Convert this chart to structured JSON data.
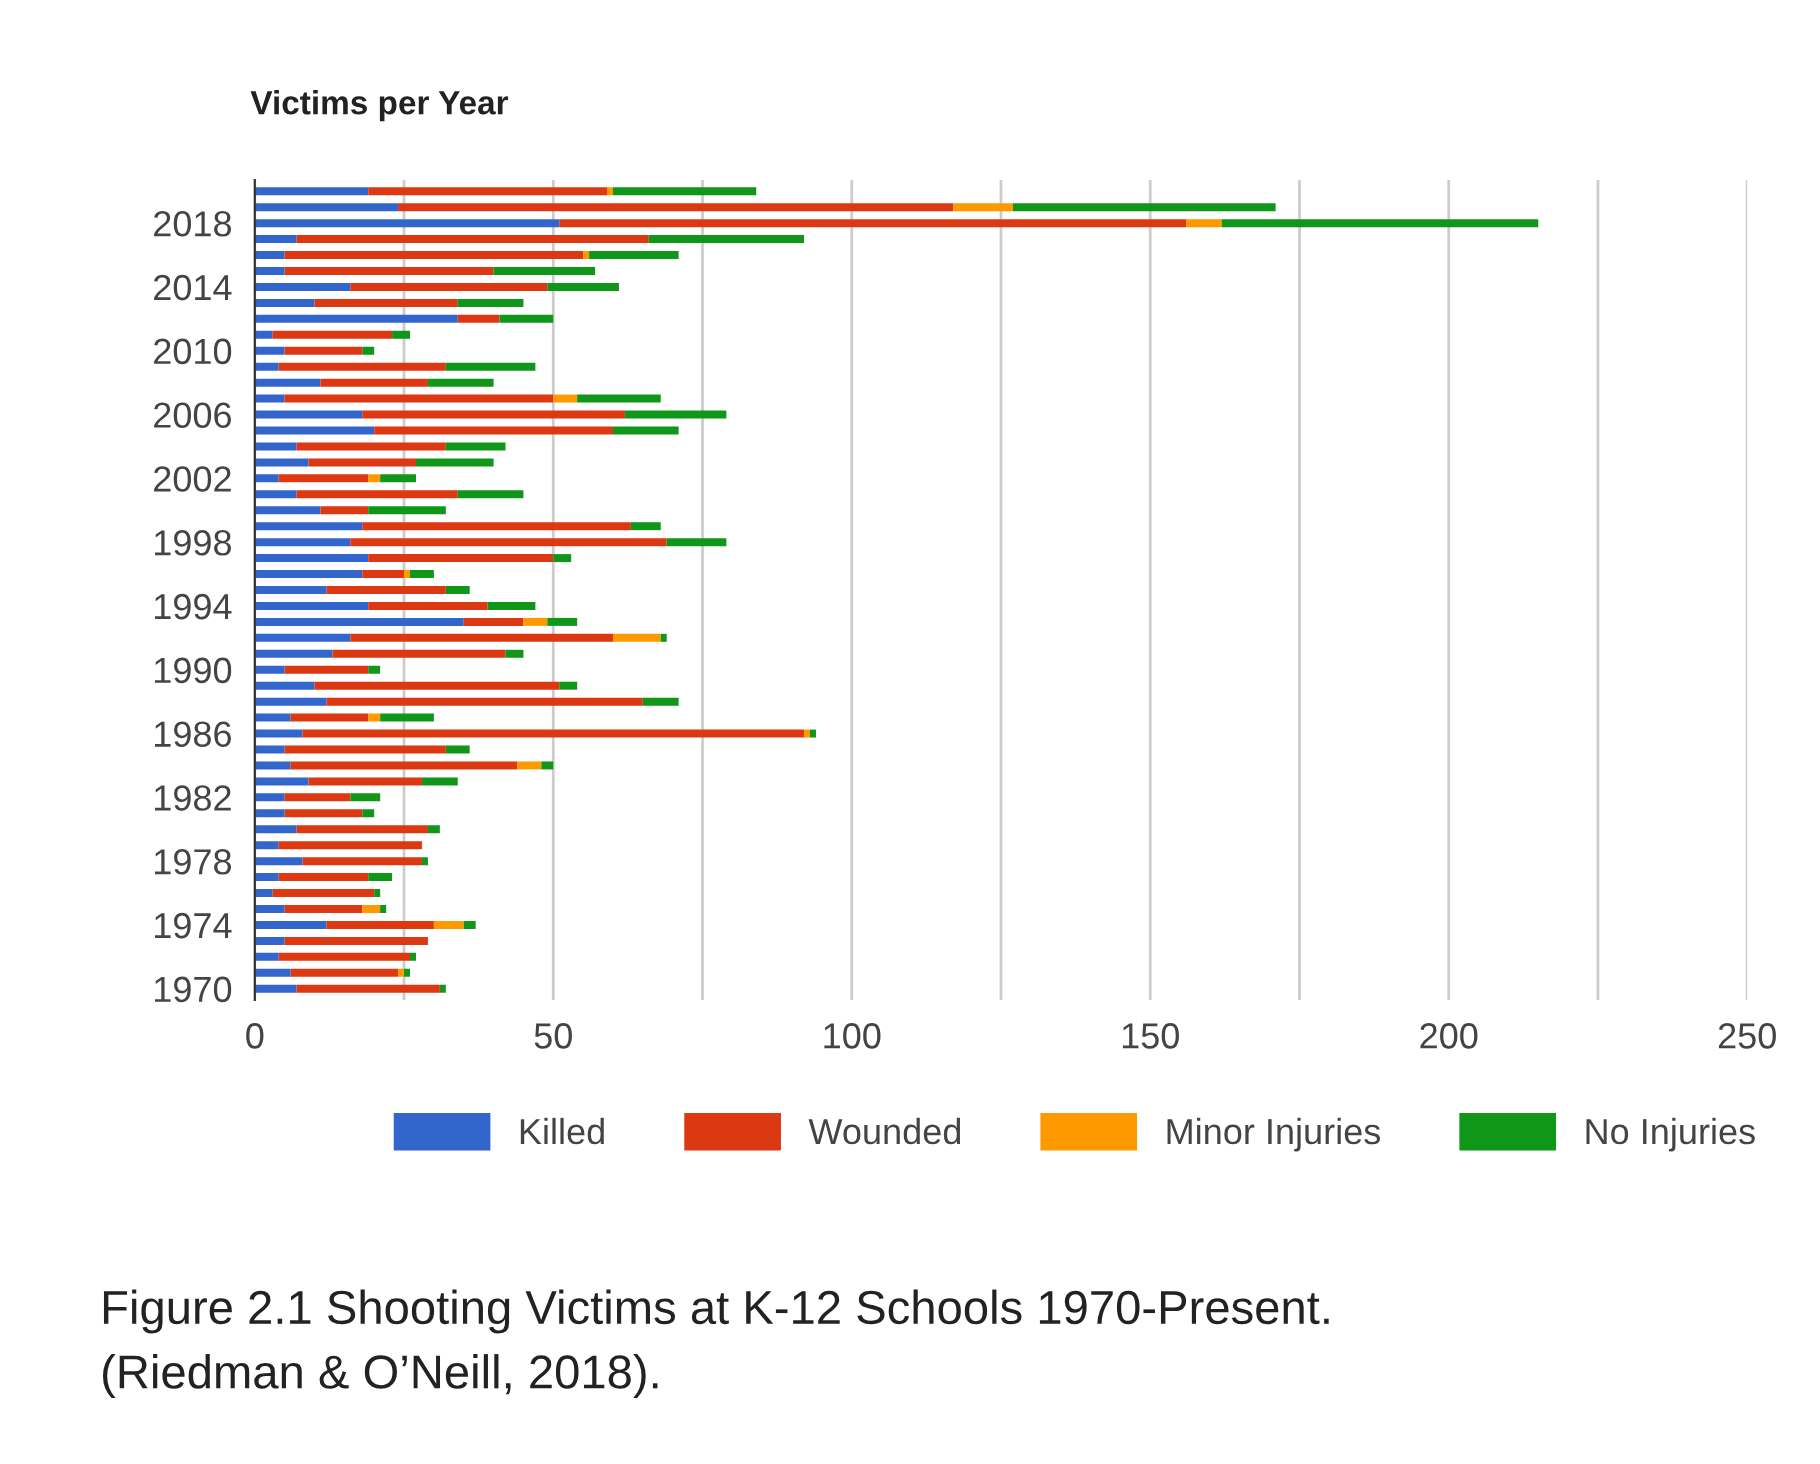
{
  "chart_data": {
    "type": "bar",
    "orientation": "horizontal",
    "stacked": true,
    "title": "Victims per Year",
    "categories": [
      null,
      null,
      "2018",
      null,
      null,
      null,
      "2014",
      null,
      null,
      null,
      "2010",
      null,
      null,
      null,
      "2006",
      null,
      null,
      null,
      "2002",
      null,
      null,
      null,
      "1998",
      null,
      null,
      null,
      "1994",
      null,
      null,
      null,
      "1990",
      null,
      null,
      null,
      "1986",
      null,
      null,
      null,
      "1982",
      null,
      null,
      null,
      "1978",
      null,
      null,
      null,
      "1974",
      null,
      null,
      null,
      "1970"
    ],
    "series": [
      {
        "name": "Killed",
        "color": "#3366cc",
        "values": [
          19,
          24,
          51,
          7,
          5,
          5,
          16,
          10,
          34,
          3,
          5,
          4,
          11,
          5,
          18,
          20,
          7,
          9,
          4,
          7,
          11,
          18,
          16,
          19,
          18,
          12,
          19,
          35,
          16,
          13,
          5,
          10,
          12,
          6,
          8,
          5,
          6,
          9,
          5,
          5,
          7,
          4,
          8,
          4,
          3,
          5,
          12,
          5,
          4,
          6,
          7
        ]
      },
      {
        "name": "Wounded",
        "color": "#dc3912",
        "values": [
          40,
          93,
          105,
          59,
          50,
          35,
          33,
          24,
          7,
          20,
          13,
          28,
          18,
          45,
          44,
          40,
          25,
          18,
          15,
          27,
          8,
          45,
          53,
          31,
          7,
          20,
          20,
          10,
          44,
          29,
          14,
          41,
          53,
          13,
          84,
          27,
          38,
          19,
          11,
          13,
          22,
          24,
          20,
          15,
          17,
          13,
          18,
          24,
          22,
          18,
          24
        ]
      },
      {
        "name": "Minor Injuries",
        "color": "#ff9900",
        "values": [
          1,
          10,
          6,
          0,
          1,
          0,
          0,
          0,
          0,
          0,
          0,
          0,
          0,
          4,
          0,
          0,
          0,
          0,
          2,
          0,
          0,
          0,
          0,
          0,
          1,
          0,
          0,
          4,
          8,
          0,
          0,
          0,
          0,
          2,
          1,
          0,
          4,
          0,
          0,
          0,
          0,
          0,
          0,
          0,
          0,
          3,
          5,
          0,
          0,
          1,
          0
        ]
      },
      {
        "name": "No Injuries",
        "color": "#109618",
        "values": [
          24,
          44,
          53,
          26,
          15,
          17,
          12,
          11,
          9,
          3,
          2,
          15,
          11,
          14,
          17,
          11,
          10,
          13,
          6,
          11,
          13,
          5,
          10,
          3,
          4,
          4,
          8,
          5,
          1,
          3,
          2,
          3,
          6,
          9,
          1,
          4,
          2,
          6,
          5,
          2,
          2,
          0,
          1,
          4,
          1,
          1,
          2,
          0,
          1,
          1,
          1
        ]
      }
    ],
    "xlim": [
      0,
      250
    ],
    "xticks": [
      0,
      {
        "value": 25,
        "label": null
      },
      50,
      {
        "value": 75,
        "label": null
      },
      100,
      {
        "value": 125,
        "label": null
      },
      150,
      {
        "value": 175,
        "label": null
      },
      200,
      {
        "value": 225,
        "label": null
      },
      250
    ],
    "grid": "x",
    "legend": "bottom",
    "annotations": [
      "Figure 2.1 Shooting Victims at K-12 Schools 1970-Present.\n(Riedman & O’Neill, 2018)."
    ]
  }
}
